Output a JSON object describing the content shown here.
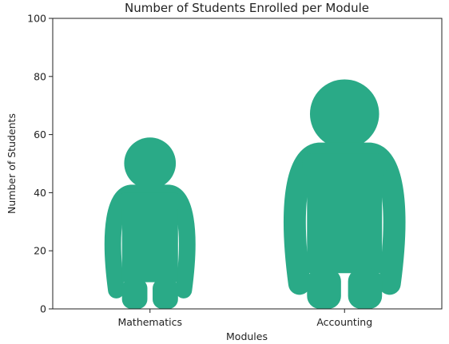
{
  "chart_data": {
    "type": "bar",
    "title": "Number of Students Enrolled per Module",
    "xlabel": "Modules",
    "ylabel": "Number of Students",
    "categories": [
      "Mathematics",
      "Accounting"
    ],
    "values": [
      59,
      79
    ],
    "ylim": [
      0,
      100
    ],
    "yticks": [
      "0",
      "20",
      "40",
      "60",
      "80",
      "100"
    ],
    "grid": false,
    "marker": "person-icon",
    "color": "#2aaa87"
  }
}
